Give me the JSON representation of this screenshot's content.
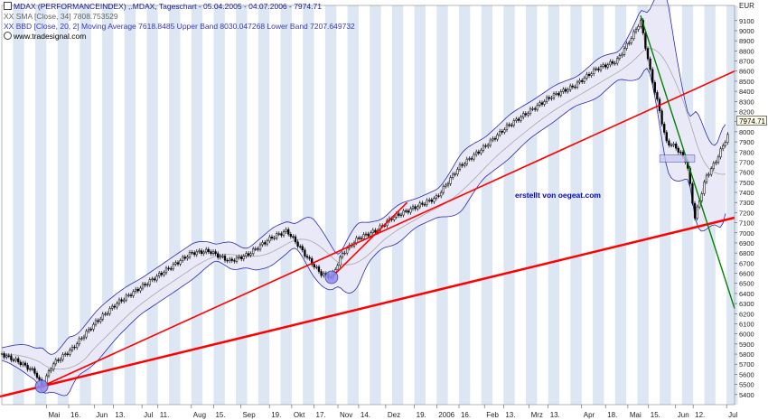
{
  "header": {
    "line1": "MDAX (PERFORMANCEINDEX) ,.MDAX, Tageschart - 05.04.2005 - 04.07.2006 - 7974.71",
    "line2": "XX SMA [Close, 34] 7808.753529",
    "line3": "XX BBD [Close, 20, 2] Moving Average 7618.8485 Upper Band 8030.047268 Lower Band 7207.649732",
    "line4": "www.tradesignal.com"
  },
  "annotation": "erstellt von oegeat.com",
  "unit": "EUR",
  "last_value_label": "7974.71",
  "colors": {
    "price": "#000000",
    "bollinger": "#2a2ab0",
    "bollinger_fill": "#e9e9f8",
    "sma": "#a8a8a8",
    "trend_support": "#ff0000",
    "trend_down": "#008000",
    "stripe": "#dde6f3",
    "marker": "#8e8ef0"
  },
  "chart_data": {
    "type": "line",
    "title": "MDAX (PERFORMANCEINDEX) ,.MDAX, Tageschart - 05.04.2005 - 04.07.2006 - 7974.71",
    "ylabel": "EUR",
    "ylim": [
      5300,
      9250
    ],
    "x_ticks": [
      "Mai",
      "16.",
      "Jun",
      "13.",
      "Jul",
      "11.",
      "Aug",
      "15.",
      "Sep",
      "19.",
      "Okt",
      "17.",
      "Nov",
      "14.",
      "Dez",
      "19.",
      "2006",
      "16.",
      "Feb",
      "13.",
      "Mrz",
      "13.",
      "Apr",
      "18.",
      "Mai",
      "15.",
      "Jun",
      "12.",
      "Jul"
    ],
    "y_ticks": [
      5400,
      5500,
      5600,
      5700,
      5800,
      5900,
      6000,
      6100,
      6200,
      6300,
      6400,
      6500,
      6600,
      6700,
      6800,
      6900,
      7000,
      7100,
      7200,
      7300,
      7400,
      7500,
      7600,
      7700,
      7800,
      7900,
      8000,
      8100,
      8200,
      8300,
      8400,
      8500,
      8600,
      8700,
      8800,
      8900,
      9000,
      9100
    ],
    "series": [
      {
        "name": "MDAX",
        "x": [
          "04.04.2005",
          "15.04.2005",
          "25.04.2005",
          "29.04.2005",
          "06.05.2005",
          "18.05.2005",
          "01.06.2005",
          "15.06.2005",
          "04.07.2005",
          "18.07.2005",
          "01.08.2005",
          "12.08.2005",
          "25.08.2005",
          "05.09.2005",
          "20.09.2005",
          "30.09.2005",
          "07.10.2005",
          "13.10.2005",
          "21.10.2005",
          "28.10.2005",
          "04.11.2005",
          "14.11.2005",
          "25.11.2005",
          "05.12.2005",
          "19.12.2005",
          "02.01.2006",
          "16.01.2006",
          "01.02.2006",
          "15.02.2006",
          "01.03.2006",
          "15.03.2006",
          "29.03.2006",
          "12.04.2006",
          "25.04.2006",
          "05.05.2006",
          "10.05.2006",
          "16.05.2006",
          "22.05.2006",
          "26.05.2006",
          "01.06.2006",
          "08.06.2006",
          "13.06.2006",
          "20.06.2006",
          "26.06.2006",
          "04.07.2006"
        ],
        "y": [
          5800,
          5720,
          5620,
          5480,
          5700,
          5850,
          6100,
          6300,
          6500,
          6650,
          6800,
          6820,
          6720,
          6780,
          6950,
          7020,
          6880,
          6750,
          6600,
          6560,
          6800,
          6950,
          7020,
          7150,
          7250,
          7350,
          7650,
          7850,
          8050,
          8200,
          8350,
          8450,
          8620,
          8700,
          8950,
          9100,
          8600,
          8200,
          7900,
          7850,
          7700,
          7150,
          7550,
          7700,
          7974.71
        ]
      }
    ]
  }
}
